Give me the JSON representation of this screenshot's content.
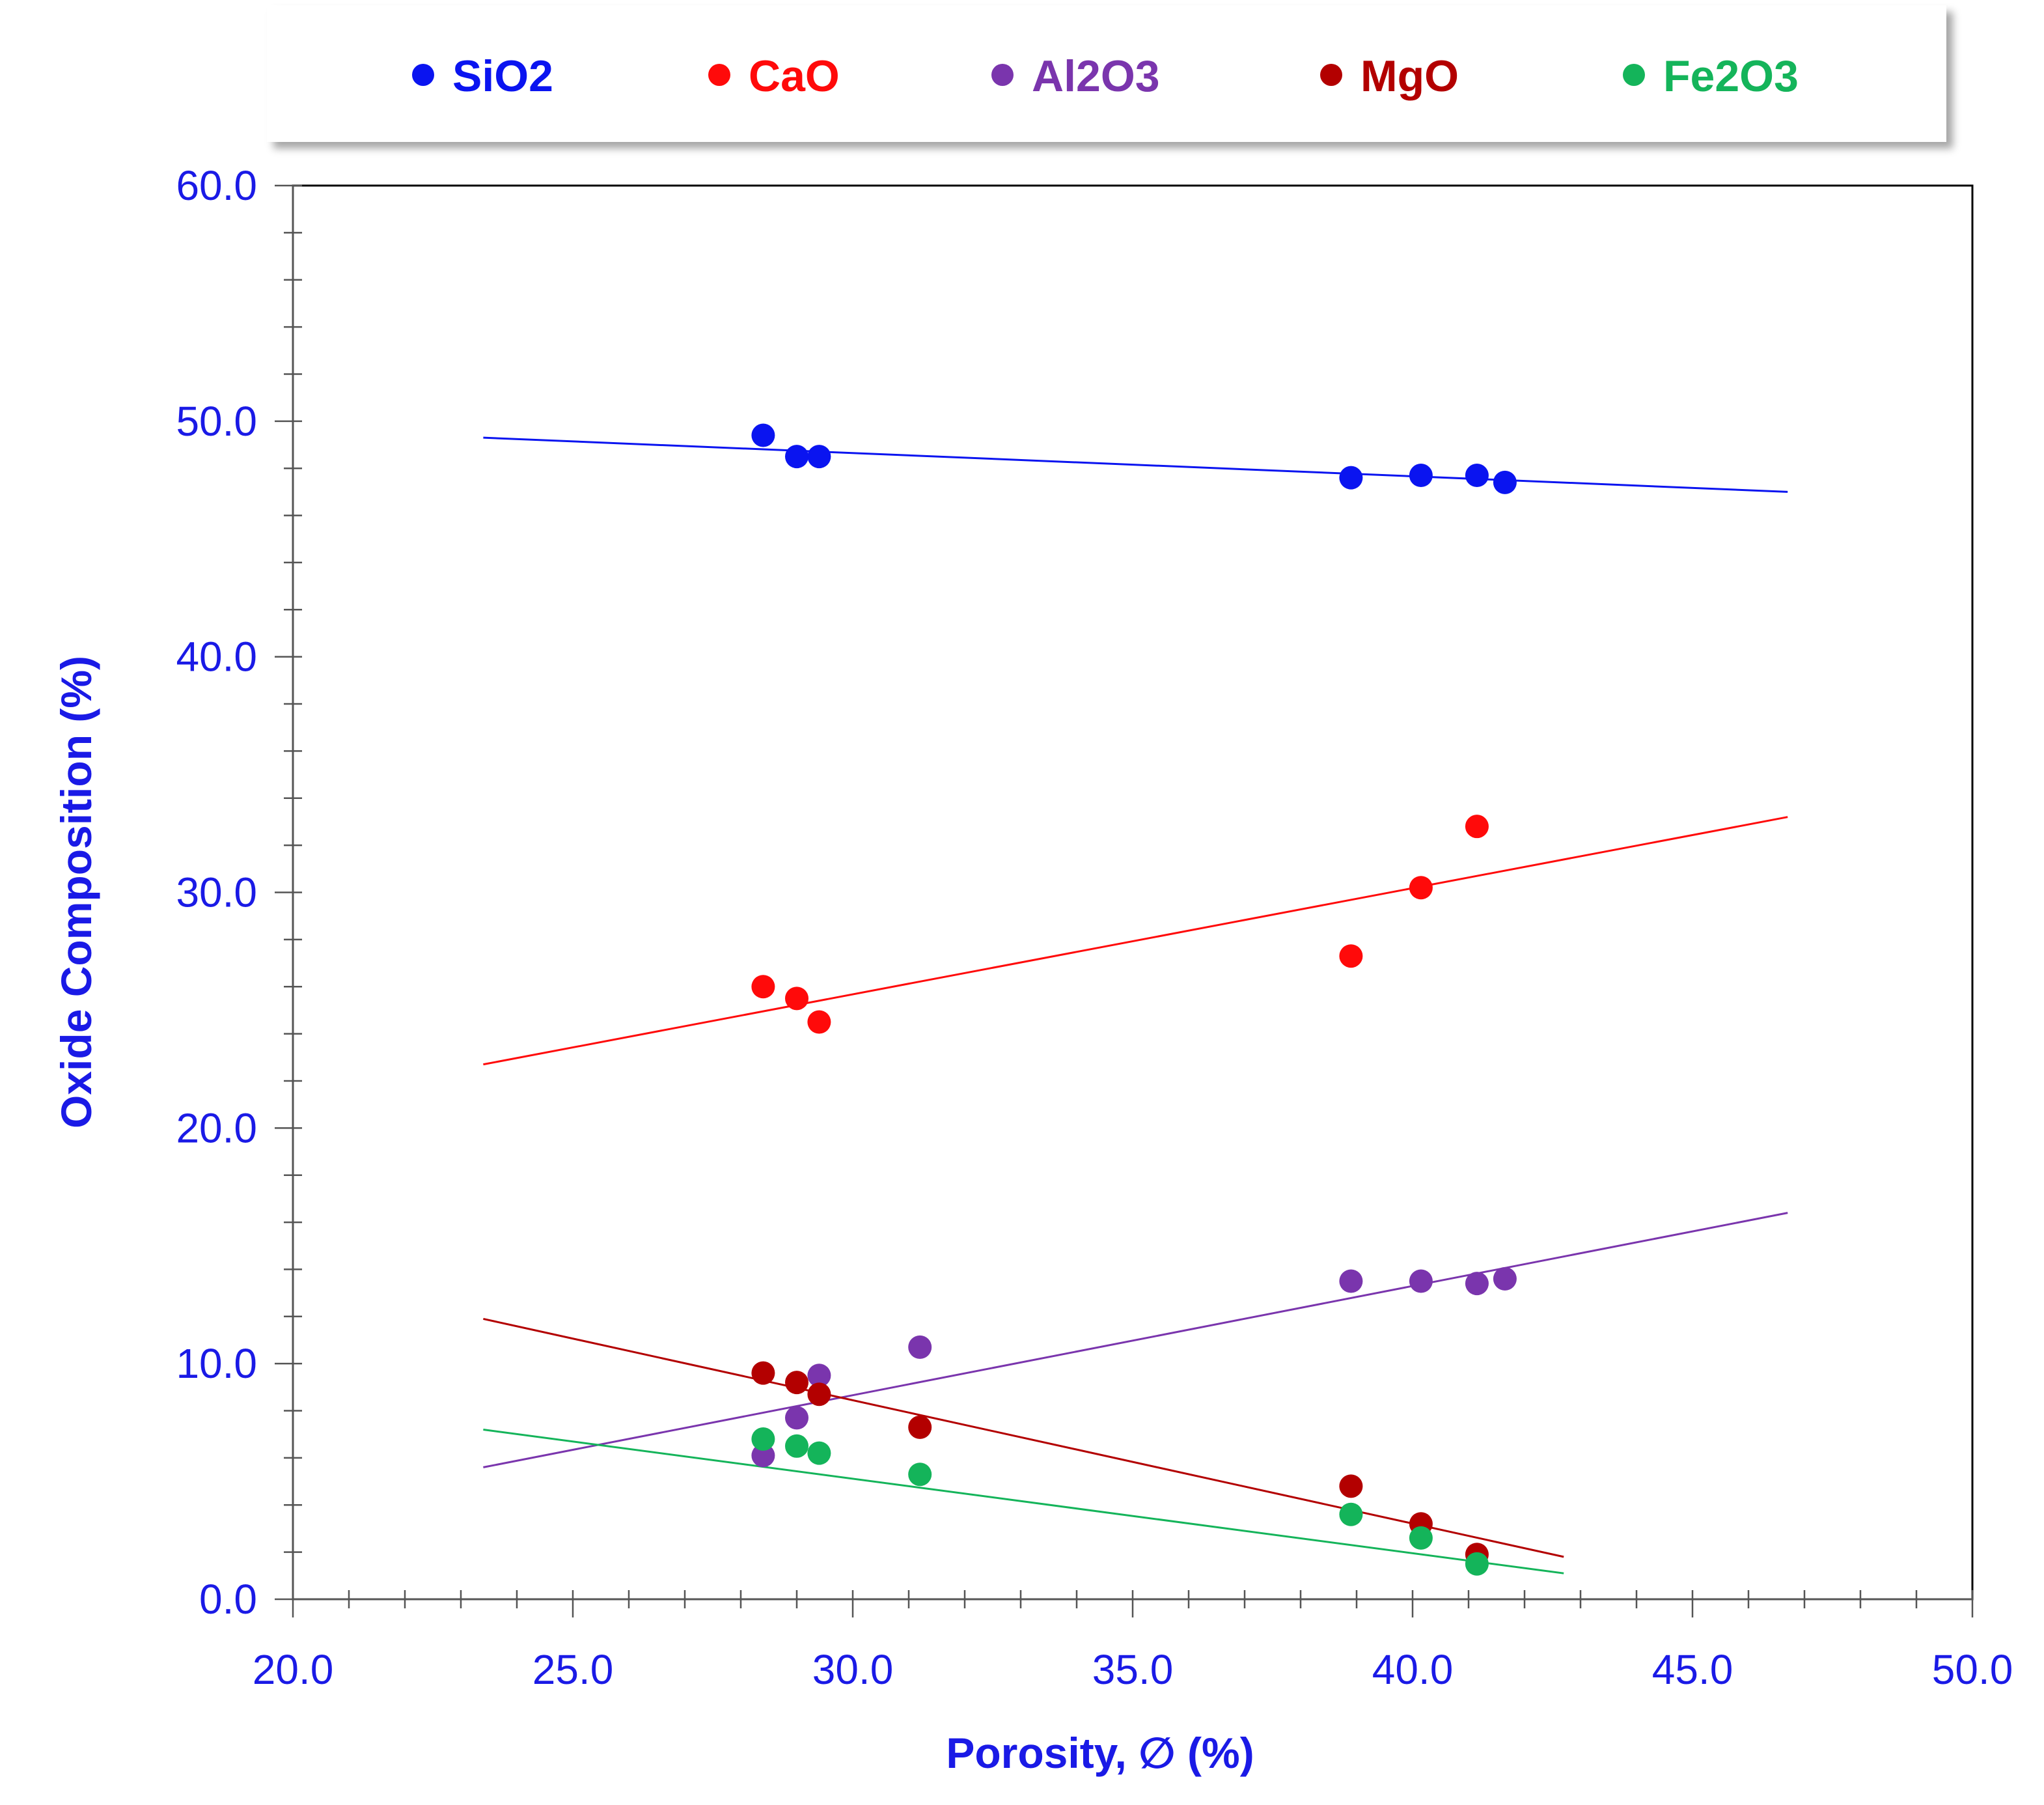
{
  "chart_data": {
    "type": "scatter",
    "title": "",
    "xlabel": "Porosity, ∅ (%)",
    "ylabel": "Oxide Composition (%)",
    "xlim": [
      20,
      50
    ],
    "ylim": [
      0,
      60
    ],
    "x_ticks": [
      "20.0",
      "25.0",
      "30.0",
      "35.0",
      "40.0",
      "45.0",
      "50.0"
    ],
    "y_ticks": [
      "0.0",
      "10.0",
      "20.0",
      "30.0",
      "40.0",
      "50.0",
      "60.0"
    ],
    "grid": false,
    "legend_position": "top",
    "axis_text_color": "#1a1ae6",
    "series": [
      {
        "name": "SiO2",
        "color": "#0a14f0",
        "points": [
          [
            28.4,
            49.4
          ],
          [
            29.0,
            48.5
          ],
          [
            29.4,
            48.5
          ],
          [
            38.9,
            47.6
          ],
          [
            40.15,
            47.7
          ],
          [
            41.15,
            47.7
          ],
          [
            41.65,
            47.4
          ]
        ],
        "trendline": {
          "x_start": 23.4,
          "x_end": 46.7,
          "y_start": 49.3,
          "y_end": 47.0
        }
      },
      {
        "name": "CaO",
        "color": "#ff0a0a",
        "points": [
          [
            28.4,
            26.0
          ],
          [
            29.0,
            25.5
          ],
          [
            29.4,
            24.5
          ],
          [
            38.9,
            27.3
          ],
          [
            40.15,
            30.2
          ],
          [
            41.15,
            32.8
          ]
        ],
        "trendline": {
          "x_start": 23.4,
          "x_end": 46.7,
          "y_start": 22.7,
          "y_end": 33.2
        }
      },
      {
        "name": "Al2O3",
        "color": "#7a35ad",
        "points": [
          [
            28.4,
            6.1
          ],
          [
            29.0,
            7.7
          ],
          [
            29.4,
            9.5
          ],
          [
            31.2,
            10.7
          ],
          [
            38.9,
            13.5
          ],
          [
            40.15,
            13.5
          ],
          [
            41.15,
            13.4
          ],
          [
            41.65,
            13.6
          ]
        ],
        "trendline": {
          "x_start": 23.4,
          "x_end": 46.7,
          "y_start": 5.6,
          "y_end": 16.4
        }
      },
      {
        "name": "MgO",
        "color": "#b30000",
        "points": [
          [
            28.4,
            9.6
          ],
          [
            29.0,
            9.2
          ],
          [
            29.4,
            8.7
          ],
          [
            31.2,
            7.3
          ],
          [
            38.9,
            4.8
          ],
          [
            40.15,
            3.2
          ],
          [
            41.15,
            1.9
          ]
        ],
        "trendline": {
          "x_start": 23.4,
          "x_end": 42.7,
          "y_start": 11.9,
          "y_end": 1.8
        }
      },
      {
        "name": "Fe2O3",
        "color": "#14b45a",
        "points": [
          [
            28.4,
            6.8
          ],
          [
            29.0,
            6.5
          ],
          [
            29.4,
            6.2
          ],
          [
            31.2,
            5.3
          ],
          [
            38.9,
            3.6
          ],
          [
            40.15,
            2.6
          ],
          [
            41.15,
            1.5
          ]
        ],
        "trendline": {
          "x_start": 23.4,
          "x_end": 42.7,
          "y_start": 7.2,
          "y_end": 1.1
        }
      }
    ]
  }
}
